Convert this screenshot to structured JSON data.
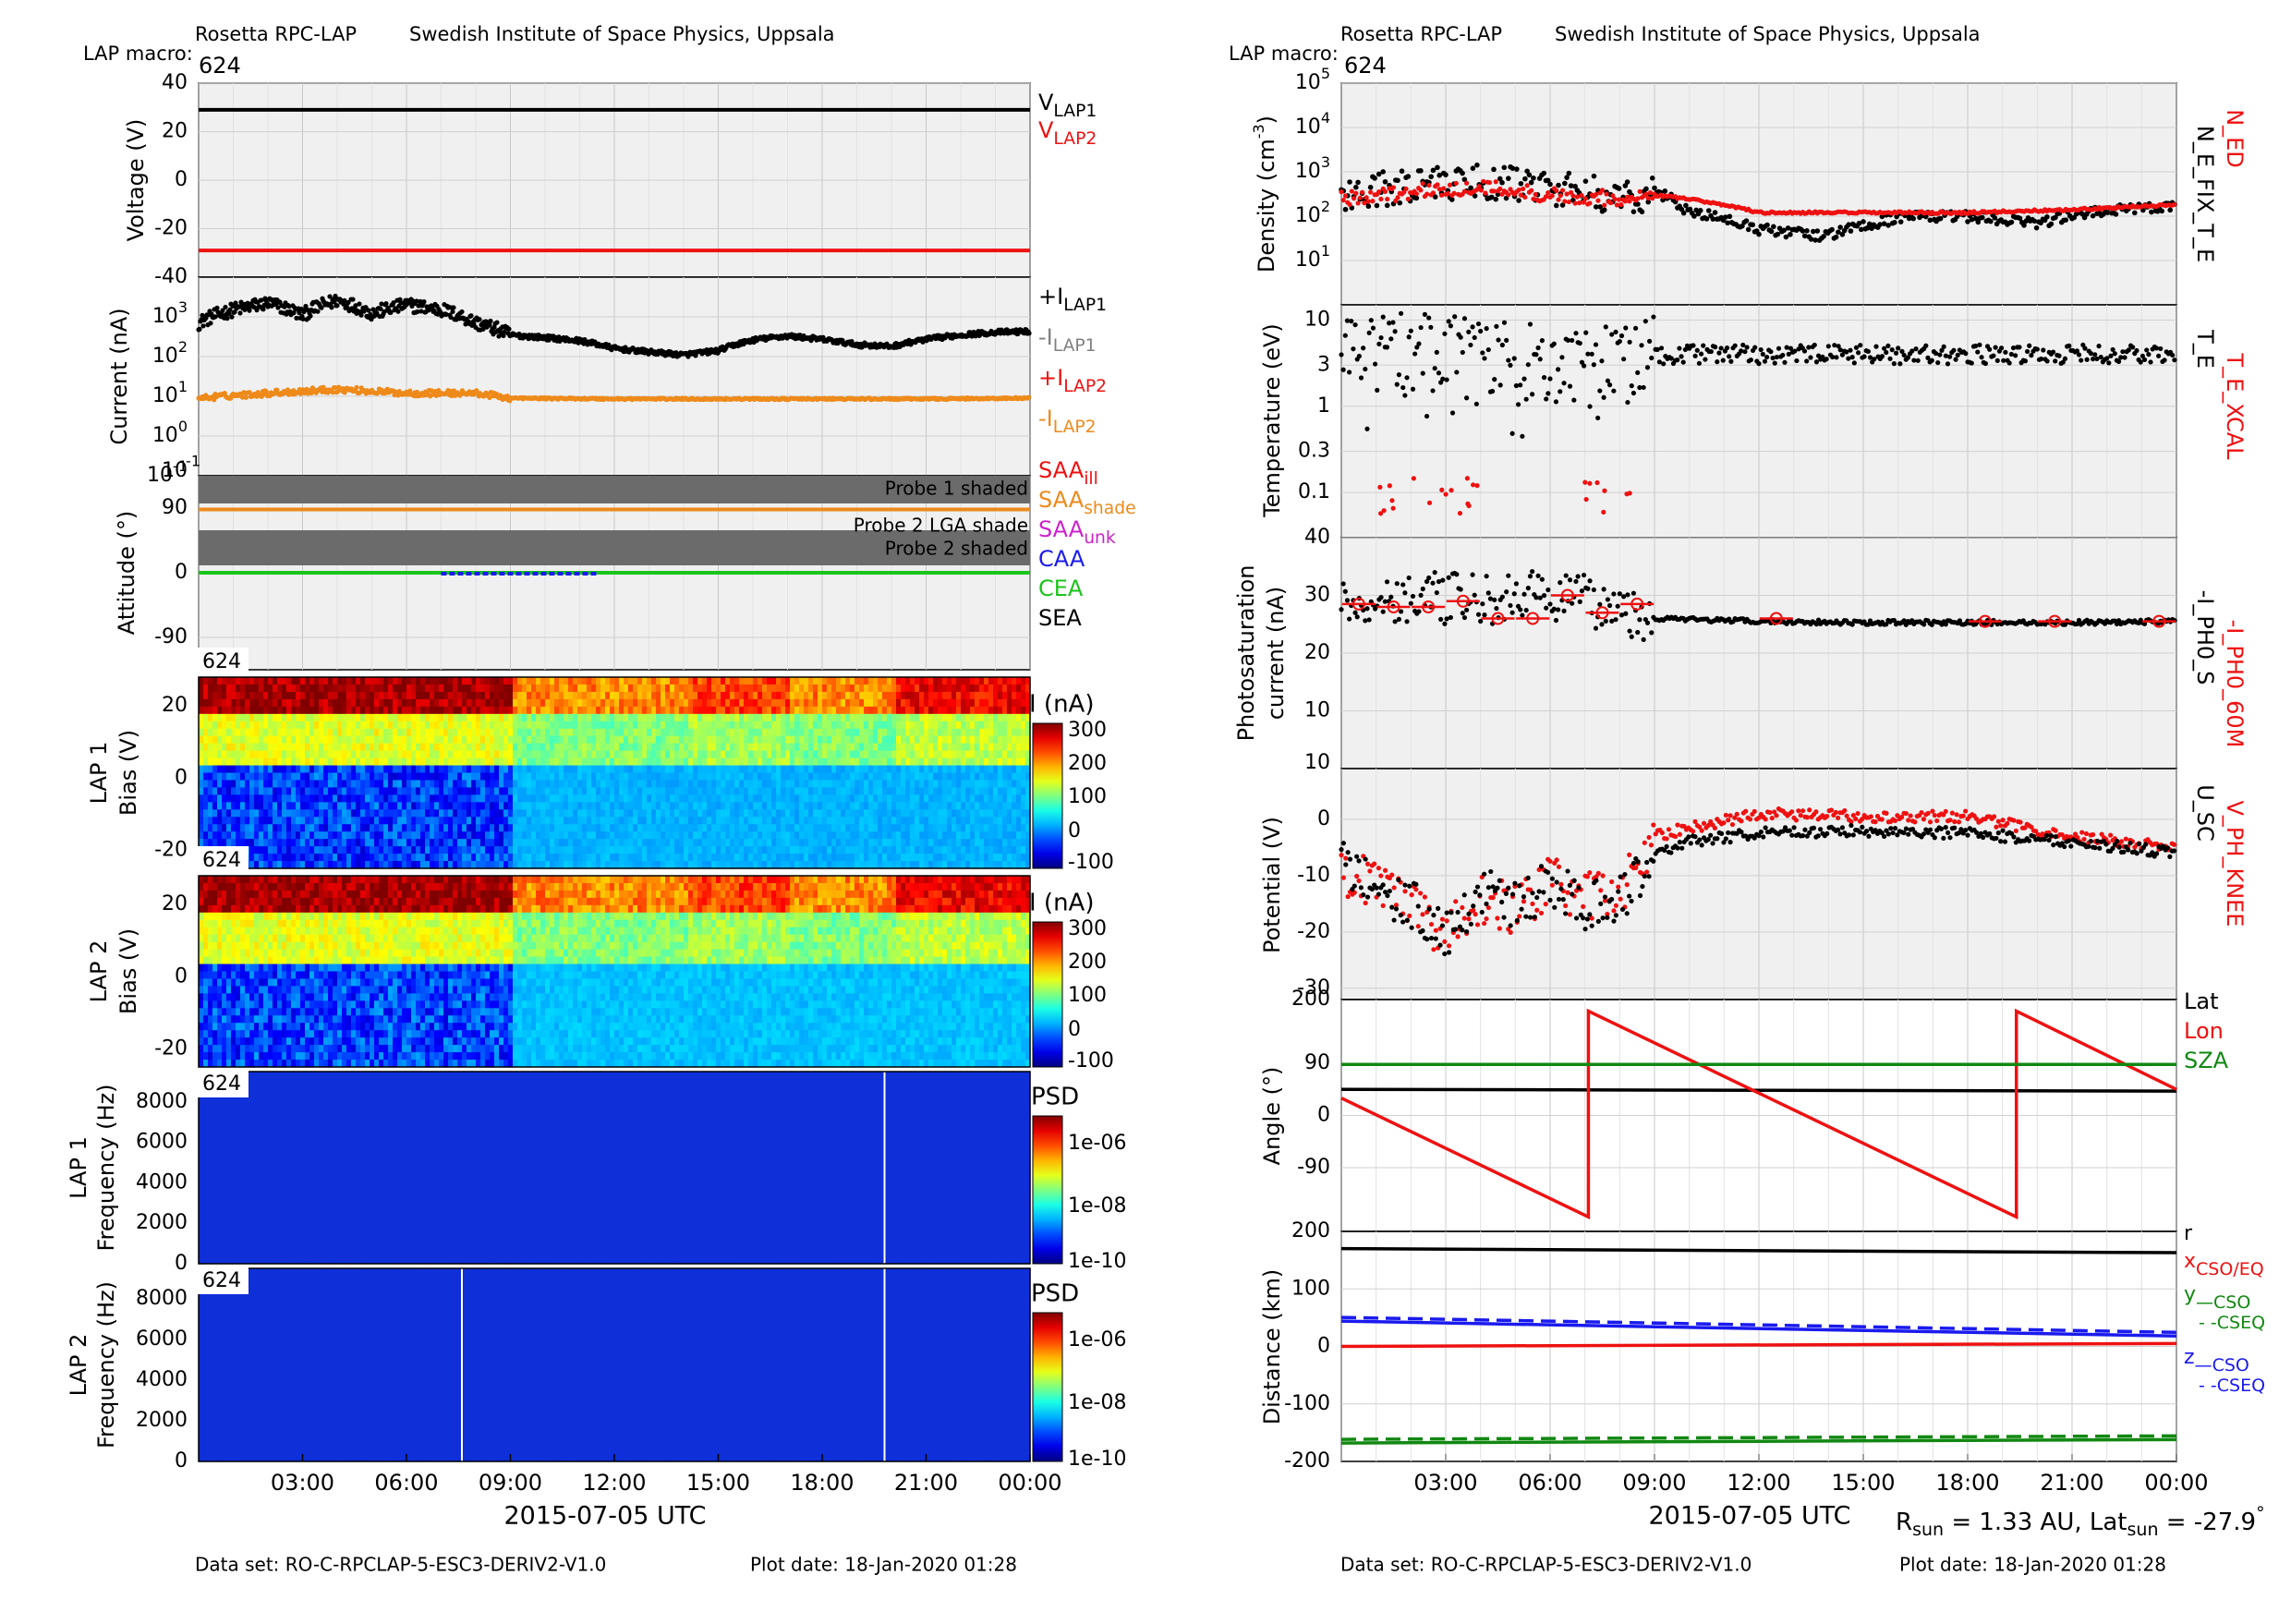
{
  "header": {
    "left": {
      "instrument": "Rosetta RPC-LAP",
      "institute": "Swedish Institute of Space Physics, Uppsala",
      "macro_label": "LAP macro:",
      "macro_value": "624"
    },
    "right": {
      "instrument": "Rosetta RPC-LAP",
      "institute": "Swedish Institute of Space Physics, Uppsala",
      "macro_label": "LAP macro:",
      "macro_value": "624"
    }
  },
  "footer": {
    "left": {
      "dataset": "Data set: RO-C-RPCLAP-5-ESC3-DERIV2-V1.0",
      "plotdate": "Plot date: 18-Jan-2020 01:28"
    },
    "right": {
      "dataset": "Data set: RO-C-RPCLAP-5-ESC3-DERIV2-V1.0",
      "plotdate": "Plot date: 18-Jan-2020 01:28"
    }
  },
  "colors": {
    "red": "#ee1111",
    "orange": "#ee8a1a",
    "black": "#000000",
    "blue": "#1a1aee",
    "green": "#1bc41b",
    "dkgreen": "#118811",
    "gray": "#808080",
    "magenta": "#cc22cc",
    "panel_bg": "#f0f0f0",
    "shade": "#6b6b6b"
  },
  "chart_data": [
    {
      "id": "voltage",
      "type": "line",
      "ylabel": "Voltage (V)",
      "ylim": [
        -40,
        40
      ],
      "yticks": [
        "40",
        "20",
        "0",
        "-20",
        "-40"
      ],
      "series": [
        {
          "name": "V_LAP1",
          "values_const": 29
        },
        {
          "name": "V_LAP2",
          "values_const": -29
        }
      ],
      "legend": [
        {
          "main": "V",
          "sub": "LAP1",
          "color": "black"
        },
        {
          "main": "V",
          "sub": "LAP2",
          "color": "red"
        }
      ]
    },
    {
      "id": "current",
      "type": "scatter",
      "ylabel": "Current (nA)",
      "yscale": "log",
      "ylim": [
        0.1,
        10000
      ],
      "yticks": [
        {
          "b": "10",
          "e": "3"
        },
        {
          "b": "10",
          "e": "2"
        },
        {
          "b": "10",
          "e": "1"
        },
        {
          "b": "10",
          "e": "0"
        },
        {
          "b": "10",
          "e": "-1"
        }
      ],
      "series": [
        {
          "name": "+I_LAP1",
          "x_hours": [
            0,
            1,
            2,
            3,
            4,
            5,
            6,
            7,
            8,
            9,
            10,
            11,
            12,
            13,
            14,
            15,
            16,
            17,
            18,
            19,
            20,
            21,
            22,
            23,
            24
          ],
          "values": [
            700,
            1500,
            2200,
            1100,
            2600,
            1200,
            2000,
            1500,
            700,
            350,
            300,
            250,
            160,
            130,
            110,
            140,
            260,
            330,
            270,
            200,
            180,
            270,
            350,
            410,
            430
          ]
        },
        {
          "name": "+I_LAP2",
          "x_hours": [
            0,
            2,
            4,
            6,
            8,
            9,
            12,
            15,
            18,
            21,
            24
          ],
          "values": [
            9,
            12,
            15,
            12,
            12,
            9,
            8.6,
            8.6,
            8.6,
            8.6,
            9
          ]
        }
      ],
      "legend": [
        {
          "main": "+I",
          "sub": "LAP1",
          "color": "black"
        },
        {
          "main": "-I",
          "sub": "LAP1",
          "color": "gray"
        },
        {
          "main": "+I",
          "sub": "LAP2",
          "color": "red"
        },
        {
          "main": "-I",
          "sub": "LAP2",
          "color": "orange"
        }
      ]
    },
    {
      "id": "attitude",
      "type": "line",
      "ylabel": "Attitude (°)",
      "ylim": [
        -135,
        135
      ],
      "yticks": [
        "90",
        "0",
        "-90"
      ],
      "shade_labels": [
        "Probe 1 shaded",
        "Probe 2 LGA shade",
        "Probe 2 shaded"
      ],
      "series": [
        {
          "name": "SAA",
          "values_const": 88
        },
        {
          "name": "CEA",
          "values_const": 0
        }
      ],
      "legend": [
        {
          "main": "SAA",
          "sub": "ill",
          "color": "red"
        },
        {
          "main": "SAA",
          "sub": "shade",
          "color": "orange"
        },
        {
          "main": "SAA",
          "sub": "unk",
          "color": "magenta"
        },
        {
          "main": "CAA",
          "sub": "",
          "color": "blue"
        },
        {
          "main": "CEA",
          "sub": "",
          "color": "green"
        },
        {
          "main": "SEA",
          "sub": "",
          "color": "black"
        }
      ]
    },
    {
      "id": "lap1_bias",
      "type": "heatmap",
      "ylabel": "LAP 1",
      "ylabel2": "Bias (V)",
      "ylim": [
        -25,
        28
      ],
      "yticks": [
        "20",
        "0",
        "-20"
      ],
      "tag": "624",
      "cbar_label": "I (nA)",
      "cbar_ticks": [
        "300",
        "200",
        "100",
        "0",
        "-100"
      ]
    },
    {
      "id": "lap2_bias",
      "type": "heatmap",
      "ylabel": "LAP 2",
      "ylabel2": "Bias (V)",
      "ylim": [
        -25,
        28
      ],
      "yticks": [
        "20",
        "0",
        "-20"
      ],
      "tag": "624",
      "cbar_label": "I (nA)",
      "cbar_ticks": [
        "300",
        "200",
        "100",
        "0",
        "-100"
      ]
    },
    {
      "id": "lap1_freq",
      "type": "heatmap",
      "ylabel": "LAP 1",
      "ylabel2": "Frequency (Hz)",
      "ylim": [
        0,
        9500
      ],
      "yticks": [
        "8000",
        "6000",
        "4000",
        "2000",
        "0"
      ],
      "tag": "624",
      "cbar_label": "PSD",
      "cbar_ticks": [
        "1e-06",
        "1e-08",
        "1e-10"
      ]
    },
    {
      "id": "lap2_freq",
      "type": "heatmap",
      "ylabel": "LAP 2",
      "ylabel2": "Frequency (Hz)",
      "ylim": [
        0,
        9500
      ],
      "yticks": [
        "8000",
        "6000",
        "4000",
        "2000",
        "0"
      ],
      "tag": "624",
      "cbar_label": "PSD",
      "cbar_ticks": [
        "1e-06",
        "1e-08",
        "1e-10"
      ]
    },
    {
      "id": "density",
      "type": "scatter",
      "ylabel": "Density (cm",
      "ylabel_sup": "-3",
      "ylabel_end": ")",
      "yscale": "log",
      "ylim": [
        1,
        100000
      ],
      "yticks": [
        {
          "b": "10",
          "e": "5"
        },
        {
          "b": "10",
          "e": "4"
        },
        {
          "b": "10",
          "e": "3"
        },
        {
          "b": "10",
          "e": "2"
        },
        {
          "b": "10",
          "e": "1"
        }
      ],
      "series": [
        {
          "name": "N_ED",
          "x_hours": [
            0,
            2,
            4,
            6,
            8,
            9,
            12,
            15,
            18,
            21,
            24
          ],
          "values": [
            250,
            350,
            450,
            300,
            250,
            300,
            120,
            120,
            120,
            140,
            180
          ]
        },
        {
          "name": "N_E_FIX_T_E",
          "x_hours": [
            0,
            2,
            4,
            6,
            8,
            9,
            10,
            12,
            14,
            16,
            18,
            20,
            22,
            24
          ],
          "values": [
            300,
            500,
            600,
            450,
            250,
            350,
            120,
            50,
            35,
            90,
            100,
            70,
            130,
            180
          ]
        }
      ],
      "right_labels": [
        {
          "text": "N_ED",
          "color": "red"
        },
        {
          "text": "N_E_FIX_T_E",
          "color": "black"
        }
      ]
    },
    {
      "id": "temperature",
      "type": "scatter",
      "ylabel": "Temperature (eV)",
      "yscale": "log",
      "ylim": [
        0.03,
        15
      ],
      "yticks": [
        "10",
        "3",
        "1",
        "0.3",
        "0.1"
      ],
      "series": [
        {
          "name": "T_E",
          "x_hours": [
            0,
            3,
            6,
            9,
            12,
            15,
            18,
            21,
            24
          ],
          "values": [
            5,
            4,
            3,
            4,
            4,
            4,
            4,
            4,
            4
          ]
        },
        {
          "name": "T_E_XCAL",
          "x_hours": [
            1,
            2,
            3,
            4,
            7
          ],
          "values": [
            0.07,
            0.12,
            0.06,
            0.1,
            0.12
          ]
        }
      ],
      "right_labels": [
        {
          "text": "T_E_XCAL",
          "color": "red"
        },
        {
          "text": "T_E",
          "color": "black"
        }
      ]
    },
    {
      "id": "photosat",
      "type": "scatter",
      "ylabel": "Photosaturation",
      "ylabel2": "current (nA)",
      "ylim": [
        0,
        40
      ],
      "yticks": [
        "40",
        "30",
        "20",
        "10"
      ],
      "series": [
        {
          "name": "-I_PH0_S",
          "x_hours": [
            0,
            2,
            4,
            6,
            8,
            9,
            12,
            15,
            18,
            21,
            24
          ],
          "values": [
            28,
            30,
            29,
            30,
            28,
            26,
            25.5,
            25.3,
            25.3,
            25.3,
            25.5
          ]
        },
        {
          "name": "-I_PH0_60M",
          "x_hours": [
            0.5,
            1.5,
            2.5,
            3.5,
            4.5,
            5.5,
            6.5,
            7.5,
            8.5,
            12.5,
            18.5,
            20.5,
            23.5
          ],
          "values": [
            28.5,
            28,
            28,
            29,
            26,
            26,
            30,
            27,
            28.5,
            26,
            25.5,
            25.5,
            25.5
          ]
        }
      ],
      "right_labels": [
        {
          "text": "-I_PH0_60M",
          "color": "red"
        },
        {
          "text": "-I_PH0_S",
          "color": "black"
        }
      ]
    },
    {
      "id": "potential",
      "type": "scatter",
      "ylabel": "Potential (V)",
      "ylim": [
        -32,
        9
      ],
      "yticks": [
        "10",
        "0",
        "-10",
        "-20",
        "-30"
      ],
      "series": [
        {
          "name": "U_SC",
          "x_hours": [
            0,
            1,
            2,
            3,
            4,
            5,
            6,
            7,
            8,
            9,
            10,
            12,
            15,
            18,
            21,
            24
          ],
          "values": [
            -8,
            -12,
            -15,
            -20,
            -13,
            -15,
            -12,
            -15,
            -14,
            -6,
            -4,
            -2.5,
            -2,
            -2.5,
            -4,
            -6
          ]
        },
        {
          "name": "V_PH_KNEE",
          "x_hours": [
            0,
            1,
            2,
            3,
            4,
            5,
            6,
            7,
            8,
            9,
            10,
            12,
            15,
            18,
            21,
            24
          ],
          "values": [
            -9,
            -12,
            -16,
            -20,
            -14,
            -16,
            -11,
            -14,
            -13,
            -3,
            -1.5,
            1,
            0.5,
            0.5,
            -3,
            -5
          ]
        }
      ],
      "right_labels": [
        {
          "text": "V_PH_KNEE",
          "color": "red"
        },
        {
          "text": "U_SC",
          "color": "black"
        }
      ]
    },
    {
      "id": "angle",
      "type": "line",
      "ylabel": "Angle (°)",
      "ylim": [
        -200,
        200
      ],
      "yticks": [
        "200",
        "90",
        "0",
        "-90"
      ],
      "series": [
        {
          "name": "Lat",
          "x_hours": [
            0,
            24
          ],
          "values": [
            45,
            42
          ]
        },
        {
          "name": "Lon",
          "x_hours": [
            0,
            7.1,
            7.1,
            19.4,
            19.4,
            24
          ],
          "values": [
            30,
            -175,
            180,
            -175,
            180,
            45
          ]
        },
        {
          "name": "SZA",
          "x_hours": [
            0,
            24
          ],
          "values": [
            88,
            88
          ]
        }
      ],
      "legend": [
        {
          "main": "Lat",
          "sub": "",
          "color": "black"
        },
        {
          "main": "Lon",
          "sub": "",
          "color": "red"
        },
        {
          "main": "SZA",
          "sub": "",
          "color": "dkgreen"
        }
      ]
    },
    {
      "id": "distance",
      "type": "line",
      "ylabel": "Distance (km)",
      "ylim": [
        -200,
        200
      ],
      "yticks": [
        "200",
        "100",
        "0",
        "-100",
        "-200"
      ],
      "series": [
        {
          "name": "r",
          "x_hours": [
            0,
            24
          ],
          "values": [
            170,
            163
          ]
        },
        {
          "name": "x",
          "x_hours": [
            0,
            24
          ],
          "values": [
            0,
            5
          ]
        },
        {
          "name": "y",
          "x_hours": [
            0,
            24
          ],
          "values": [
            -168,
            -162
          ]
        },
        {
          "name": "z",
          "x_hours": [
            0,
            24
          ],
          "values": [
            44,
            18
          ]
        }
      ],
      "legend": [
        {
          "main": "r",
          "sub": "",
          "color": "black"
        },
        {
          "main": "x",
          "sub": "CSO/EQ",
          "color": "red"
        },
        {
          "main": "y",
          "sub": "—CSO",
          "color": "dkgreen"
        },
        {
          "main": "",
          "sub": "- -CSEQ",
          "color": "dkgreen"
        },
        {
          "main": "z",
          "sub": "—CSO",
          "color": "blue"
        },
        {
          "main": "",
          "sub": "- -CSEQ",
          "color": "blue"
        }
      ]
    }
  ],
  "xaxis": {
    "ticks": [
      "03:00",
      "06:00",
      "09:00",
      "12:00",
      "15:00",
      "18:00",
      "21:00",
      "00:00"
    ],
    "label": "2015-07-05 UTC"
  },
  "sun": {
    "r_label": "R",
    "r_sub": "sun",
    "r_value": " = 1.33 AU, Lat",
    "lat_sub": "sun",
    "lat_value": " = -27.9",
    "deg": "°"
  }
}
